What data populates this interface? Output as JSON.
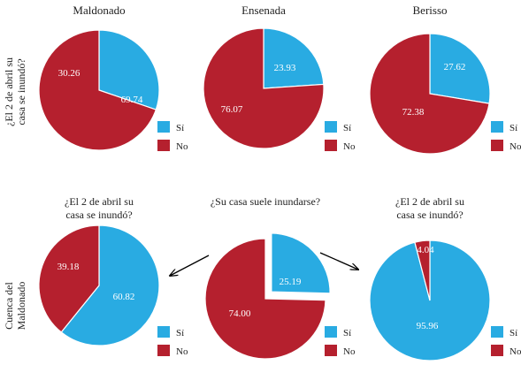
{
  "row_labels": {
    "row1": [
      "¿El 2 de abril su",
      "casa se inundó?"
    ],
    "row2": [
      "Cuenca del",
      "Maldonado"
    ]
  },
  "colors": {
    "si": "#29abe2",
    "no": "#b5202e"
  },
  "legend": {
    "si": "Sí",
    "no": "No"
  },
  "chart_data": [
    {
      "type": "pie",
      "title": [
        "Maldonado"
      ],
      "categories": [
        "Sí",
        "No"
      ],
      "values": [
        30.26,
        69.74
      ],
      "labels": [
        "30.26",
        "69.74"
      ]
    },
    {
      "type": "pie",
      "title": [
        "Ensenada"
      ],
      "categories": [
        "Sí",
        "No"
      ],
      "values": [
        23.93,
        76.07
      ],
      "labels": [
        "23.93",
        "76.07"
      ]
    },
    {
      "type": "pie",
      "title": [
        "Berisso"
      ],
      "categories": [
        "Sí",
        "No"
      ],
      "values": [
        27.62,
        72.38
      ],
      "labels": [
        "27.62",
        "72.38"
      ]
    },
    {
      "type": "pie",
      "title": [
        "¿El 2 de abril su",
        "casa se inundó?"
      ],
      "categories": [
        "Sí",
        "No"
      ],
      "values": [
        60.82,
        39.18
      ],
      "labels": [
        "60.82",
        "39.18"
      ]
    },
    {
      "type": "pie",
      "title": [
        "¿Su casa suele inundarse?"
      ],
      "categories": [
        "Sí",
        "No"
      ],
      "values": [
        25.19,
        74.0
      ],
      "labels": [
        "25.19",
        "74.00"
      ],
      "exploded": "Sí"
    },
    {
      "type": "pie",
      "title": [
        "¿El 2 de abril su",
        "casa se inundó?"
      ],
      "categories": [
        "Sí",
        "No"
      ],
      "values": [
        95.96,
        4.04
      ],
      "labels": [
        "95.96",
        "4.04"
      ]
    }
  ]
}
